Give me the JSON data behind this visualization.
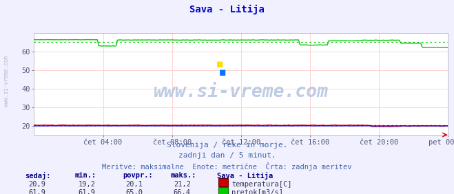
{
  "title": "Sava - Litija",
  "title_color": "#0000cc",
  "bg_color": "#f0f0ff",
  "plot_bg_color": "#ffffff",
  "grid_color": "#ffcccc",
  "xlim": [
    0,
    288
  ],
  "ylim": [
    15,
    70
  ],
  "yticks": [
    20,
    30,
    40,
    50,
    60
  ],
  "xtick_labels": [
    "čet 04:00",
    "čet 08:00",
    "čet 12:00",
    "čet 16:00",
    "čet 20:00",
    "pet 00:00"
  ],
  "xtick_positions": [
    48,
    96,
    144,
    192,
    240,
    288
  ],
  "temp_color": "#cc0000",
  "flow_color": "#00cc00",
  "blue_color": "#0000ff",
  "watermark": "www.si-vreme.com",
  "watermark_color": "#aabbdd",
  "subtitle1": "Slovenija / reke in morje.",
  "subtitle2": "zadnji dan / 5 minut.",
  "subtitle3": "Meritve: maksimalne  Enote: metrične  Črta: zadnja meritev",
  "subtitle_color": "#4466aa",
  "legend_title": "Sava - Litija",
  "legend_color": "#000088",
  "label_color": "#000088",
  "temp_avg": 20.1,
  "temp_min": 19.2,
  "temp_max": 21.2,
  "temp_now": 20.9,
  "flow_avg": 65.0,
  "flow_min": 61.9,
  "flow_max": 66.4,
  "flow_now": 61.9,
  "tick_color": "#555577",
  "side_label": "www.si-vreme.com",
  "side_label_color": "#aabbcc"
}
